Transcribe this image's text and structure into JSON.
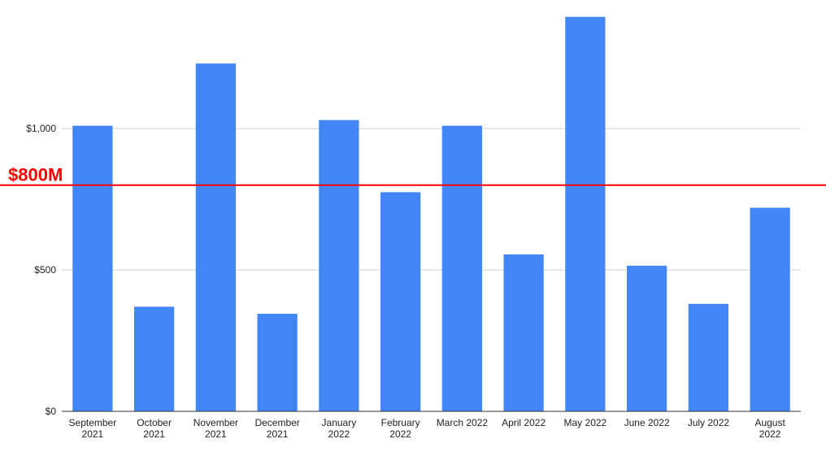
{
  "chart_data": {
    "type": "bar",
    "title": "",
    "xlabel": "",
    "ylabel": "",
    "categories": [
      [
        "September",
        "2021"
      ],
      [
        "October",
        "2021"
      ],
      [
        "November",
        "2021"
      ],
      [
        "December",
        "2021"
      ],
      [
        "January",
        "2022"
      ],
      [
        "February",
        "2022"
      ],
      [
        "March 2022"
      ],
      [
        "April 2022"
      ],
      [
        "May 2022"
      ],
      [
        "June 2022"
      ],
      [
        "July 2022"
      ],
      [
        "August",
        "2022"
      ]
    ],
    "values": [
      1010,
      370,
      1230,
      345,
      1030,
      775,
      1010,
      555,
      1395,
      515,
      380,
      720
    ],
    "ylim": [
      0,
      1400
    ],
    "yticks": [
      0,
      500,
      1000
    ],
    "ytick_labels": [
      "$0",
      "$500",
      "$1,000"
    ],
    "grid": true,
    "legend": "none",
    "bar_color": "#4285f4",
    "reference_line": {
      "value": 800,
      "label": "$800M",
      "color": "#ff0000"
    }
  }
}
